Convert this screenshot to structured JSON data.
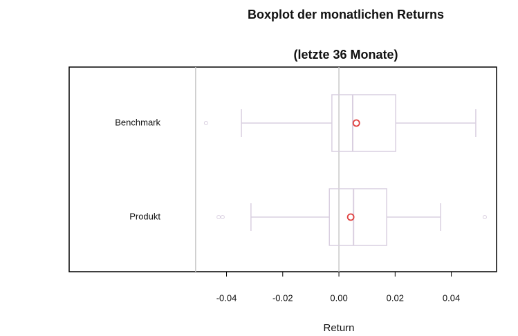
{
  "chart_data": {
    "type": "boxplot",
    "title": "Boxplot der monatlichen Returns",
    "subtitle": "(letzte 36 Monate)",
    "x_label": "Return",
    "categories": [
      "Benchmark",
      "Produkt"
    ],
    "boxes": [
      {
        "whislo": -0.0347,
        "q1": -0.0025,
        "med": 0.0049,
        "q3": 0.0202,
        "whishi": 0.0487,
        "mean": 0.0062,
        "fliers": [
          -0.0473
        ]
      },
      {
        "whislo": -0.0313,
        "q1": -0.0034,
        "med": 0.0052,
        "q3": 0.017,
        "whishi": 0.0362,
        "mean": 0.0042,
        "fliers": [
          -0.0428,
          -0.0414,
          0.0519
        ]
      }
    ],
    "xlim": [
      -0.096,
      0.0561
    ],
    "xticks": [
      -0.04,
      -0.02,
      {
        "value": 0,
        "label": "0.00"
      },
      0.02,
      0.04
    ],
    "vlines": [
      -0.051,
      0
    ],
    "box_color": "#d9cfe0",
    "mean_color": "#e0403f",
    "line_color": "#c8c8c8"
  }
}
